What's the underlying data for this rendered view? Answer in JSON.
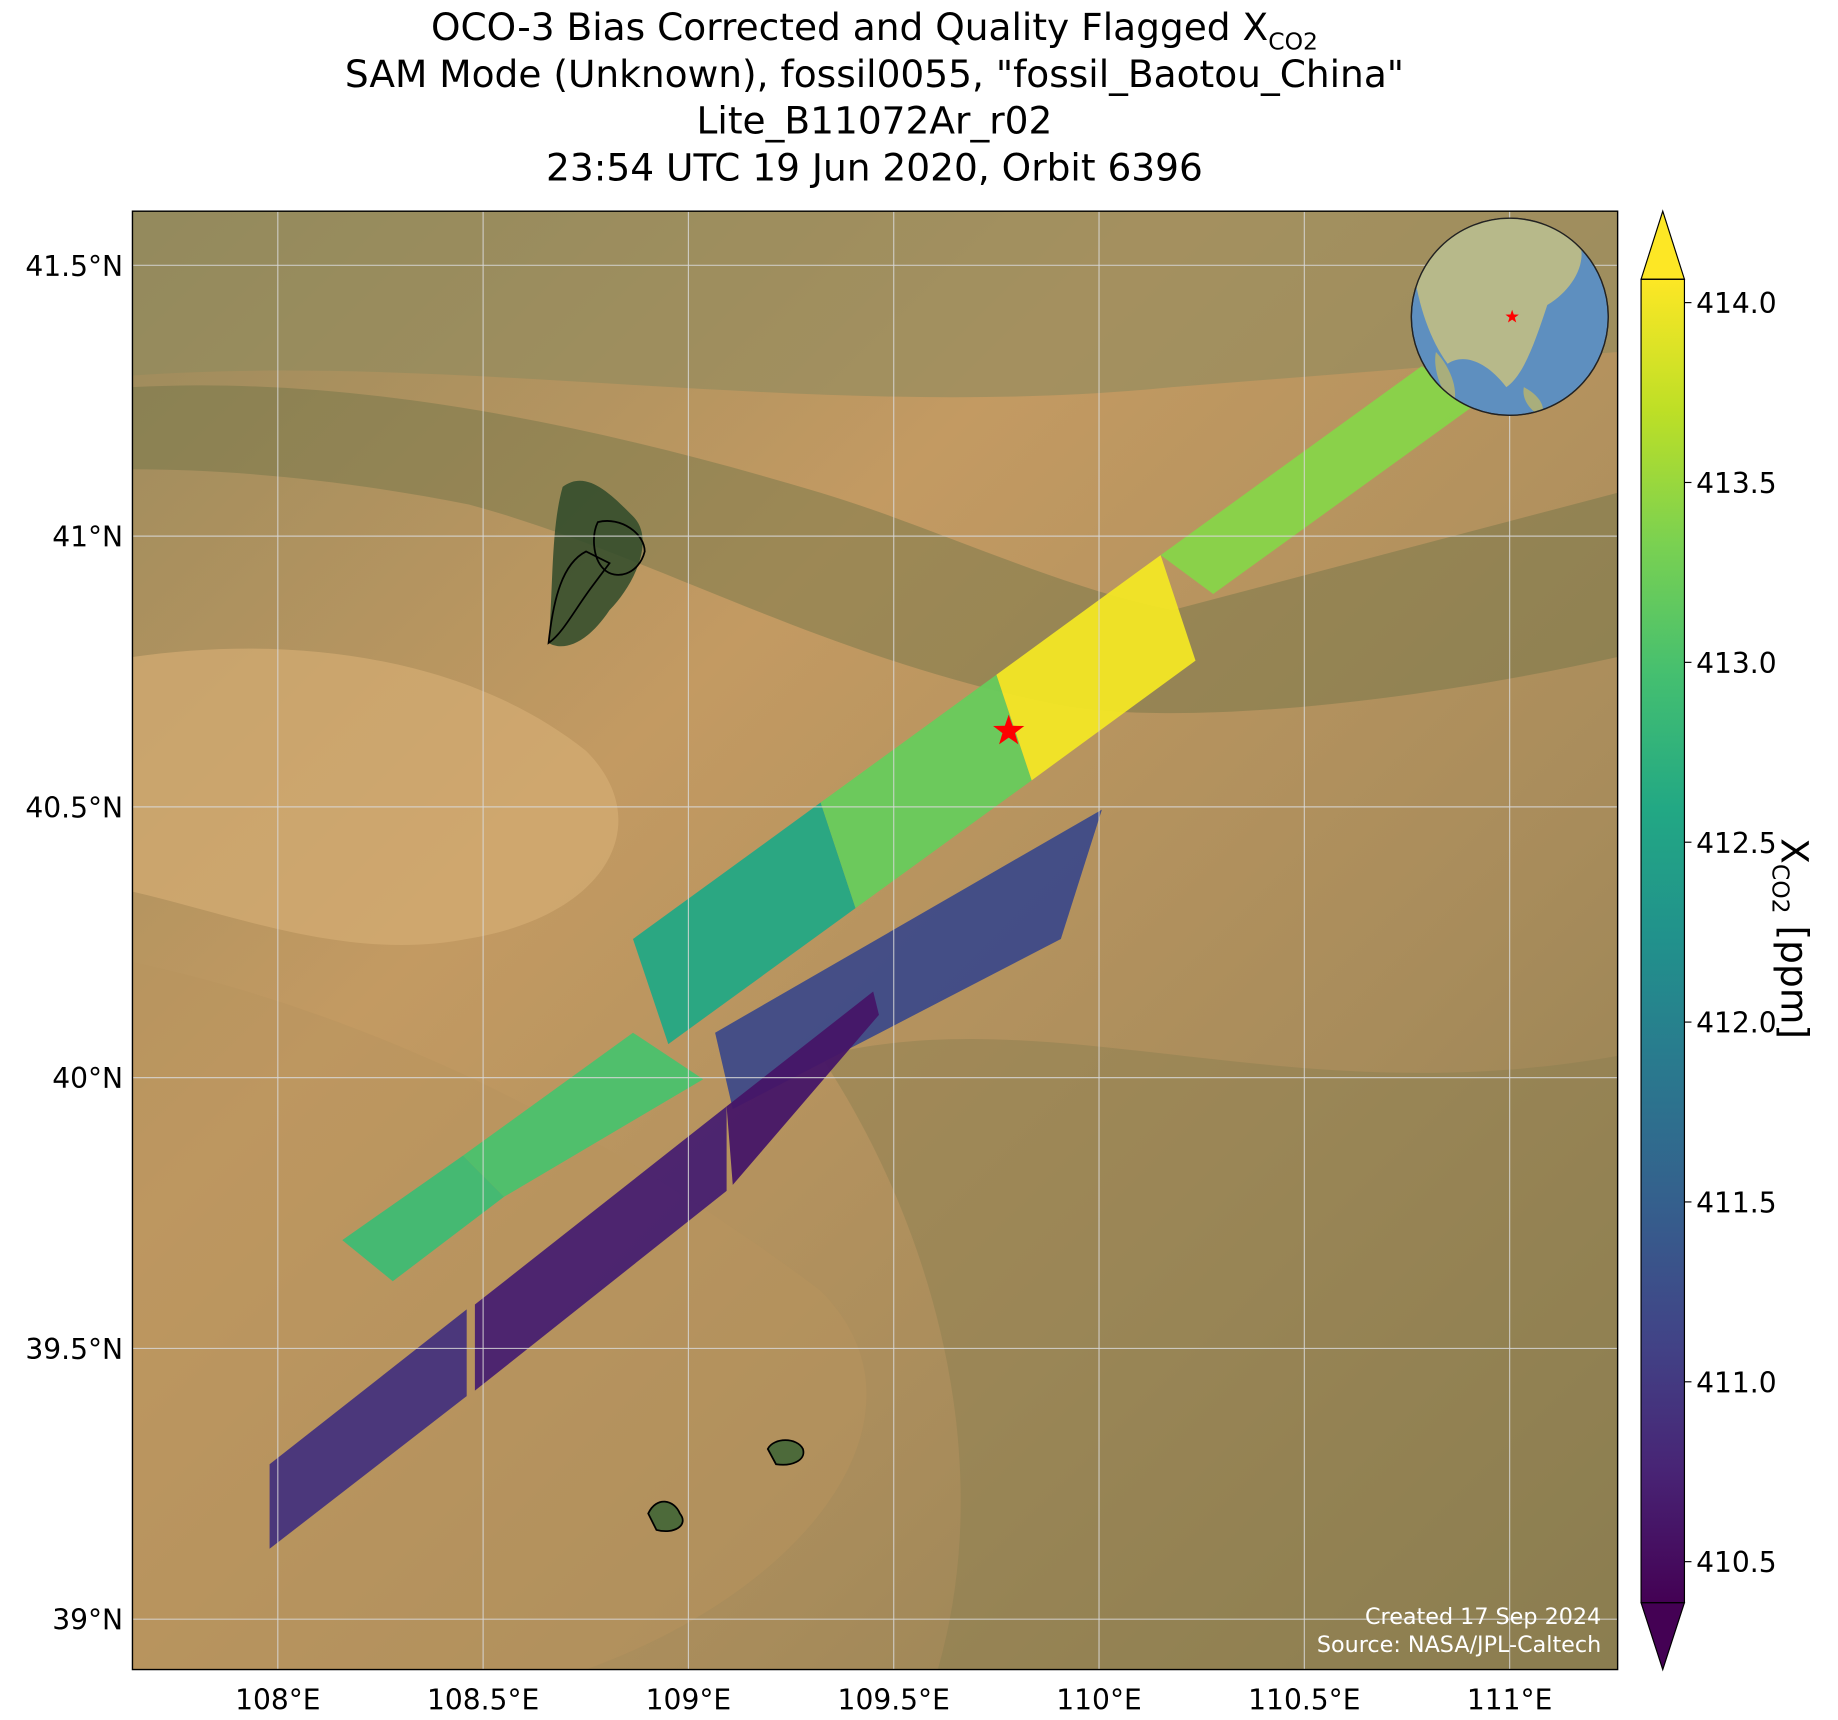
{
  "chart_data": {
    "type": "swath-map",
    "title": [
      "OCO-3 Bias Corrected and Quality Flagged X",
      "SAM Mode (Unknown), fossil0055, \"fossil_Baotou_China\"",
      "Lite_B11072Ar_r02",
      "23:54 UTC 19 Jun 2020, Orbit 6396"
    ],
    "title_subscript": "CO2",
    "xlim": [
      107.646,
      111.263
    ],
    "ylim": [
      38.907,
      41.6
    ],
    "xticks": [
      {
        "value": 108,
        "label": "108°E"
      },
      {
        "value": 108.5,
        "label": "108.5°E"
      },
      {
        "value": 109,
        "label": "109°E"
      },
      {
        "value": 109.5,
        "label": "109.5°E"
      },
      {
        "value": 110,
        "label": "110°E"
      },
      {
        "value": 110.5,
        "label": "110.5°E"
      },
      {
        "value": 111,
        "label": "111°E"
      }
    ],
    "yticks": [
      {
        "value": 39,
        "label": "39°N"
      },
      {
        "value": 39.5,
        "label": "39.5°N"
      },
      {
        "value": 40,
        "label": "40°N"
      },
      {
        "value": 40.5,
        "label": "40.5°N"
      },
      {
        "value": 41,
        "label": "41°N"
      },
      {
        "value": 41.5,
        "label": "41.5°N"
      }
    ],
    "grid": true,
    "colormap": "viridis",
    "clim": [
      410.386,
      414.065
    ],
    "cticks": [
      {
        "value": 410.5,
        "label": "410.5"
      },
      {
        "value": 411,
        "label": "411.0"
      },
      {
        "value": 411.5,
        "label": "411.5"
      },
      {
        "value": 412,
        "label": "412.0"
      },
      {
        "value": 412.5,
        "label": "412.5"
      },
      {
        "value": 413,
        "label": "413.0"
      },
      {
        "value": 413.5,
        "label": "413.5"
      },
      {
        "value": 414,
        "label": "414.0"
      }
    ],
    "colorbar_label": "X",
    "colorbar_label_subscript": "CO2",
    "colorbar_label_unit": " [ppm]",
    "target": {
      "lon": 109.78,
      "lat": 40.64,
      "color": "#ff0000"
    },
    "swath": [
      {
        "lon": [
          108.157,
          108.451,
          108.551,
          108.28
        ],
        "lat": [
          39.7,
          39.856,
          39.78,
          39.624
        ],
        "value": 412.9
      },
      {
        "lon": [
          108.451,
          108.865,
          109.036,
          108.551
        ],
        "lat": [
          39.856,
          40.083,
          39.997,
          39.78
        ],
        "value": 413.0
      },
      {
        "lon": [
          108.865,
          109.322,
          109.407,
          108.951
        ],
        "lat": [
          40.256,
          40.508,
          40.313,
          40.062
        ],
        "value": 412.6
      },
      {
        "lon": [
          109.322,
          109.75,
          109.836,
          109.407
        ],
        "lat": [
          40.508,
          40.744,
          40.549,
          40.313
        ],
        "value": 413.2
      },
      {
        "lon": [
          109.75,
          110.15,
          110.235,
          109.836
        ],
        "lat": [
          40.744,
          40.965,
          40.77,
          40.549
        ],
        "value": 414.0
      },
      {
        "lon": [
          110.15,
          110.786,
          110.915,
          110.278
        ],
        "lat": [
          40.965,
          41.314,
          41.242,
          40.893
        ],
        "value": 413.4
      },
      {
        "lon": [
          109.065,
          110.007,
          109.907,
          109.108
        ],
        "lat": [
          40.083,
          40.495,
          40.256,
          39.942
        ],
        "value": 411.2
      },
      {
        "lon": [
          107.98,
          108.46,
          108.46,
          107.98
        ],
        "lat": [
          39.286,
          39.572,
          39.412,
          39.13
        ],
        "value": 410.9
      },
      {
        "lon": [
          108.48,
          109.093,
          109.093,
          108.48
        ],
        "lat": [
          39.581,
          39.947,
          39.791,
          39.422
        ],
        "value": 410.7
      },
      {
        "lon": [
          109.093,
          109.45,
          109.464,
          109.108
        ],
        "lat": [
          39.947,
          40.159,
          40.116,
          39.802
        ],
        "value": 410.6
      }
    ],
    "credits": [
      "Created 17 Sep 2024",
      "Source: NASA/JPL-Caltech"
    ]
  }
}
